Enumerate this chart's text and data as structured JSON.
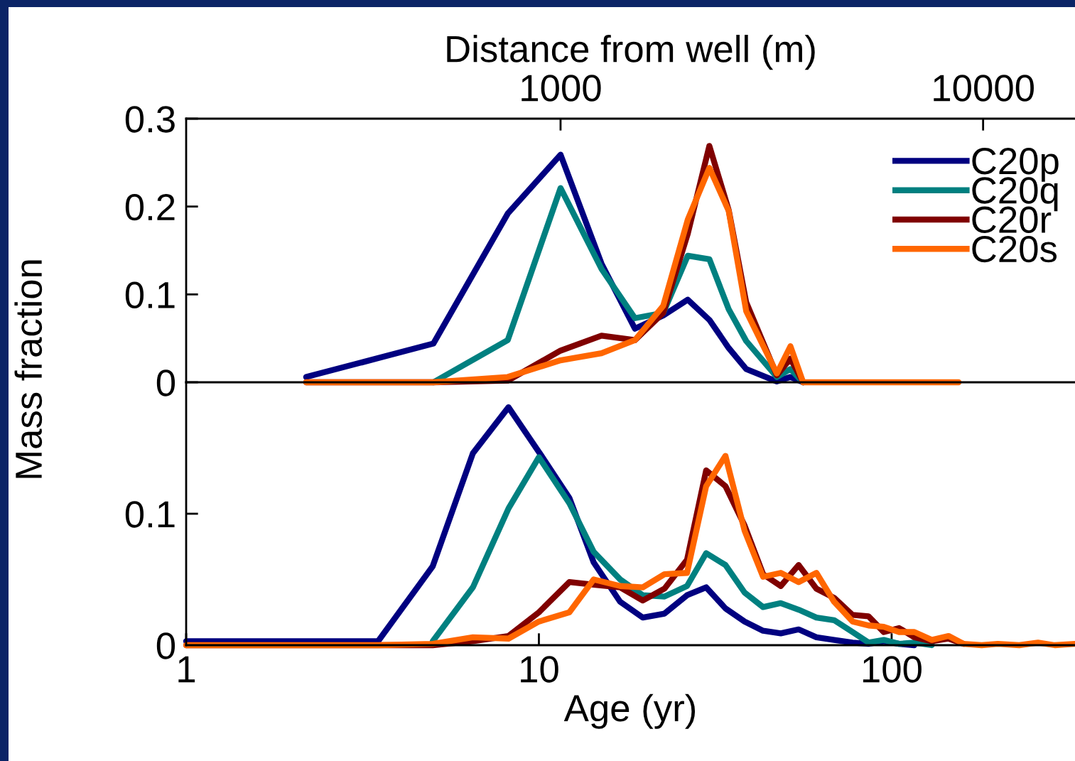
{
  "chart_data": [
    {
      "type": "line",
      "xlabel": "Distance from well (m)",
      "ylabel": "Mass fraction",
      "log": "x",
      "xlim": [
        130,
        16500
      ],
      "xticks": [
        1000,
        10000
      ],
      "ylim": [
        0,
        0.3
      ],
      "yticks": [
        0,
        0.1,
        0.2,
        0.3
      ],
      "grid": false,
      "legend": "top right",
      "line_style": "solid",
      "series": [
        {
          "name": "C20p",
          "color": "#000080",
          "x": [
            250,
            500,
            750,
            1000,
            1250,
            1500,
            1750,
            2000,
            2250,
            2500,
            2750,
            3250,
            3500,
            3750
          ],
          "values": [
            0.006,
            0.044,
            0.192,
            0.259,
            0.135,
            0.061,
            0.076,
            0.094,
            0.071,
            0.039,
            0.015,
            0.001,
            0.006,
            0
          ]
        },
        {
          "name": "C20q",
          "color": "#008080",
          "x": [
            500,
            750,
            1000,
            1250,
            1500,
            1750,
            2000,
            2250,
            2500,
            2750,
            3250,
            3500,
            3750
          ],
          "values": [
            0,
            0.048,
            0.221,
            0.129,
            0.073,
            0.079,
            0.144,
            0.14,
            0.083,
            0.047,
            0.006,
            0.015,
            0
          ]
        },
        {
          "name": "C20r",
          "color": "#800000",
          "x": [
            250,
            500,
            750,
            1000,
            1250,
            1500,
            1750,
            2000,
            2250,
            2500,
            2750,
            3250,
            3500,
            3750
          ],
          "values": [
            0,
            0,
            0.002,
            0.036,
            0.053,
            0.048,
            0.079,
            0.169,
            0.269,
            0.196,
            0.091,
            0.008,
            0.027,
            0
          ]
        },
        {
          "name": "C20s",
          "color": "#ff6600",
          "x": [
            250,
            500,
            750,
            1000,
            1250,
            1500,
            1750,
            2000,
            2250,
            2500,
            2750,
            3250,
            3500,
            3750,
            8750
          ],
          "values": [
            0,
            0,
            0.006,
            0.025,
            0.033,
            0.048,
            0.087,
            0.185,
            0.244,
            0.195,
            0.081,
            0.01,
            0.041,
            0,
            0
          ]
        }
      ]
    },
    {
      "type": "line",
      "xlabel": "Age (yr)",
      "log": "x",
      "xlim": [
        1,
        331
      ],
      "xticks": [
        1,
        10,
        100
      ],
      "ylim": [
        0,
        0.2
      ],
      "yticks": [
        0,
        0.1
      ],
      "grid": false,
      "line_style": "solid",
      "series": [
        {
          "color": "#000080",
          "x": [
            1,
            3.5,
            5,
            6.5,
            8.2,
            10,
            12.2,
            14.3,
            17,
            19.7,
            22.7,
            26.3,
            29.8,
            33.8,
            38.3,
            43.2,
            48.5,
            54.5,
            61.2,
            68.7,
            77.5,
            86,
            95,
            105,
            116
          ],
          "values": [
            0.003,
            0.003,
            0.06,
            0.146,
            0.181,
            0.147,
            0.112,
            0.063,
            0.033,
            0.021,
            0.024,
            0.038,
            0.044,
            0.028,
            0.018,
            0.011,
            0.009,
            0.012,
            0.006,
            0.004,
            0.002,
            0.001,
            0.003,
            0.001,
            0
          ]
        },
        {
          "color": "#008080",
          "x": [
            5,
            6.5,
            8.2,
            10,
            12.2,
            14.3,
            17,
            19.7,
            22.7,
            26.3,
            29.8,
            33.8,
            38.3,
            43.2,
            48.5,
            54.5,
            61.2,
            68.7,
            77.5,
            86,
            95,
            105,
            116,
            130
          ],
          "values": [
            0.003,
            0.044,
            0.104,
            0.143,
            0.108,
            0.071,
            0.05,
            0.038,
            0.037,
            0.045,
            0.07,
            0.061,
            0.04,
            0.029,
            0.032,
            0.027,
            0.021,
            0.019,
            0.01,
            0.002,
            0.004,
            0.001,
            0.002,
            0
          ]
        },
        {
          "color": "#800000",
          "x": [
            1,
            3.5,
            5,
            6.5,
            8.2,
            10,
            12.2,
            14.3,
            17,
            19.7,
            22.7,
            26.3,
            29.8,
            33.8,
            38.3,
            43.2,
            48.5,
            54.5,
            61.2,
            68.7,
            77.5,
            86,
            95,
            105,
            116,
            130,
            145,
            160
          ],
          "values": [
            0,
            0,
            0,
            0.003,
            0.007,
            0.025,
            0.048,
            0.046,
            0.044,
            0.034,
            0.043,
            0.065,
            0.133,
            0.121,
            0.091,
            0.054,
            0.045,
            0.061,
            0.043,
            0.036,
            0.023,
            0.022,
            0.01,
            0.013,
            0.006,
            0.003,
            0.005,
            0.001
          ]
        },
        {
          "color": "#ff6600",
          "x": [
            1,
            3.5,
            5,
            6.5,
            8.2,
            10,
            12.2,
            14.3,
            17,
            19.7,
            22.7,
            26.3,
            29.8,
            33.8,
            38.3,
            43.2,
            48.5,
            54.5,
            61.2,
            68.7,
            77.5,
            86,
            95,
            105,
            116,
            130,
            145,
            160,
            180,
            200,
            230,
            260,
            290,
            331
          ],
          "values": [
            0,
            0,
            0.001,
            0.006,
            0.005,
            0.018,
            0.025,
            0.05,
            0.045,
            0.044,
            0.054,
            0.055,
            0.121,
            0.144,
            0.087,
            0.052,
            0.055,
            0.048,
            0.055,
            0.033,
            0.018,
            0.015,
            0.014,
            0.01,
            0.01,
            0.004,
            0.007,
            0.001,
            0,
            0.001,
            0,
            0.002,
            0,
            0.001
          ]
        }
      ]
    }
  ]
}
